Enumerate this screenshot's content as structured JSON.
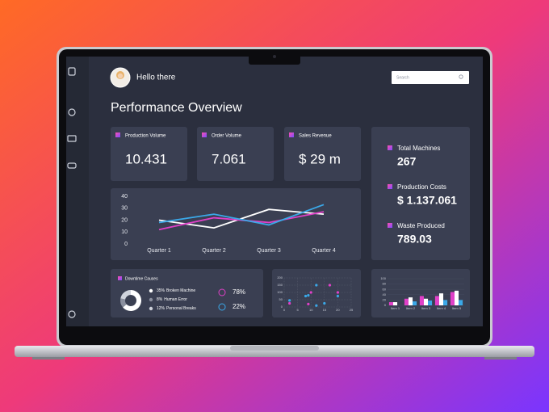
{
  "header": {
    "greeting": "Hello there",
    "search_placeholder": "Search"
  },
  "title": "Performance Overview",
  "kpis": [
    {
      "label": "Production Volume",
      "value": "10.431"
    },
    {
      "label": "Order Volume",
      "value": "7.061"
    },
    {
      "label": "Sales Revenue",
      "value": "$ 29 m"
    }
  ],
  "side_stats": [
    {
      "label": "Total Machines",
      "value": "267"
    },
    {
      "label": "Production Costs",
      "value": "$ 1.137.061"
    },
    {
      "label": "Waste Produced",
      "value": "789.03"
    }
  ],
  "line_chart": {
    "type": "line",
    "categories": [
      "Quarter 1",
      "Quarter 2",
      "Quarter 3",
      "Quarter 4"
    ],
    "ylim": [
      0,
      40
    ],
    "yticks": [
      0,
      10,
      20,
      30,
      40
    ],
    "series": [
      {
        "color": "#ffffff",
        "values": [
          20,
          13.5,
          29,
          25
        ]
      },
      {
        "color": "#e040c8",
        "values": [
          12,
          22,
          18,
          27
        ]
      },
      {
        "color": "#3aa8e8",
        "values": [
          18,
          25,
          16,
          33
        ]
      }
    ]
  },
  "downtime": {
    "type": "pie",
    "title": "Downtime Causes",
    "labels": [
      "Broken Machine",
      "Human Error",
      "Personal Breaks"
    ],
    "values": [
      35,
      8,
      12
    ],
    "value_labels": [
      "35%",
      "8%",
      "12%"
    ],
    "colors": [
      "#ffffff",
      "#8a8f9e",
      "#cfd3dc"
    ]
  },
  "share_stats": [
    "78%",
    "22%"
  ],
  "scatter": {
    "type": "scatter",
    "xlim": [
      0,
      25
    ],
    "ylim": [
      0,
      200
    ],
    "xticks": [
      0,
      5,
      10,
      15,
      20,
      25
    ],
    "yticks": [
      0,
      50,
      100,
      150,
      200
    ],
    "grid": true,
    "series": [
      {
        "color": "#3aa8e8",
        "x": [
          2,
          8,
          9,
          12,
          15,
          20,
          12
        ],
        "y": [
          45,
          75,
          80,
          150,
          25,
          75,
          10
        ]
      },
      {
        "color": "#e040c8",
        "x": [
          2,
          10,
          17,
          20,
          9
        ],
        "y": [
          25,
          100,
          150,
          100,
          20
        ]
      }
    ]
  },
  "bars": {
    "type": "bar",
    "categories": [
      "Item 1",
      "Item 2",
      "Item 3",
      "Item 4",
      "Item 5"
    ],
    "ylim": [
      0,
      100
    ],
    "yticks": [
      0,
      20,
      40,
      60,
      80,
      100
    ],
    "grid": true,
    "series": [
      {
        "color": "#e040c8",
        "values": [
          12,
          25,
          35,
          35,
          50
        ]
      },
      {
        "color": "#ffffff",
        "values": [
          12,
          30,
          25,
          45,
          55
        ]
      },
      {
        "color": "#3aa8e8",
        "values": [
          0,
          15,
          18,
          20,
          20
        ]
      }
    ]
  }
}
